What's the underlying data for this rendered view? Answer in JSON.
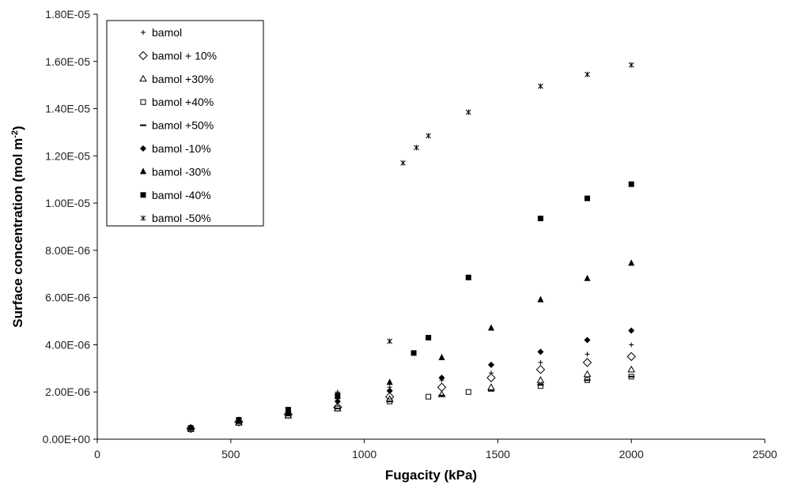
{
  "chart_data": {
    "type": "scatter",
    "title": "",
    "xlabel": "Fugacity (kPa)",
    "ylabel_main": "Surface concentration (mol m",
    "ylabel_sup": "-2",
    "ylabel_close": ")",
    "xlim": [
      0,
      2500
    ],
    "ylim": [
      0,
      1.8e-05
    ],
    "x_ticks": [
      0,
      500,
      1000,
      1500,
      2000,
      2500
    ],
    "x_tick_labels": [
      "0",
      "500",
      "1000",
      "1500",
      "2000",
      "2500"
    ],
    "y_ticks": [
      0,
      2e-06,
      4e-06,
      6e-06,
      8e-06,
      1e-05,
      1.2e-05,
      1.4e-05,
      1.6e-05,
      1.8e-05
    ],
    "y_tick_labels": [
      "0.00E+00",
      "2.00E-06",
      "4.00E-06",
      "6.00E-06",
      "8.00E-06",
      "1.00E-05",
      "1.20E-05",
      "1.40E-05",
      "1.60E-05",
      "1.80E-05"
    ],
    "grid": false,
    "legend_position": "top-left",
    "series": [
      {
        "name": "bamol",
        "marker": "plus",
        "x": [
          350,
          530,
          715,
          900,
          1095,
          1290,
          1475,
          1660,
          1835,
          2000
        ],
        "y": [
          5e-07,
          7.7e-07,
          1.2e-06,
          2e-06,
          2.2e-06,
          2.5e-06,
          2.8e-06,
          3.25e-06,
          3.6e-06,
          4e-06
        ]
      },
      {
        "name": "bamol + 10%",
        "marker": "diamond-open",
        "x": [
          350,
          530,
          715,
          900,
          1095,
          1290,
          1475,
          1660,
          1835,
          2000
        ],
        "y": [
          4.5e-07,
          7.3e-07,
          1.05e-06,
          1.35e-06,
          1.8e-06,
          2.2e-06,
          2.6e-06,
          2.95e-06,
          3.25e-06,
          3.5e-06
        ]
      },
      {
        "name": "bamol +30%",
        "marker": "triangle-open",
        "x": [
          350,
          530,
          715,
          900,
          1095,
          1290,
          1475,
          1660,
          1835,
          2000
        ],
        "y": [
          4.4e-07,
          7e-07,
          1e-06,
          1.3e-06,
          1.7e-06,
          1.9e-06,
          2.2e-06,
          2.5e-06,
          2.75e-06,
          2.95e-06
        ]
      },
      {
        "name": "bamol +40%",
        "marker": "square-open",
        "x": [
          350,
          530,
          715,
          900,
          1095,
          1240,
          1390,
          1660,
          1835,
          2000
        ],
        "y": [
          4.2e-07,
          7e-07,
          1e-06,
          1.3e-06,
          1.6e-06,
          1.8e-06,
          2e-06,
          2.25e-06,
          2.5e-06,
          2.65e-06
        ]
      },
      {
        "name": "bamol +50%",
        "marker": "dash",
        "x": [
          350,
          530,
          715,
          900,
          1095,
          1290,
          1475,
          1660,
          1835,
          2000
        ],
        "y": [
          4e-07,
          6.8e-07,
          1e-06,
          1.3e-06,
          1.6e-06,
          1.85e-06,
          2.05e-06,
          2.3e-06,
          2.5e-06,
          2.65e-06
        ]
      },
      {
        "name": "bamol -10%",
        "marker": "diamond-filled",
        "x": [
          350,
          530,
          715,
          900,
          1095,
          1290,
          1475,
          1660,
          1835,
          2000
        ],
        "y": [
          4.6e-07,
          7.7e-07,
          1.1e-06,
          1.6e-06,
          2.05e-06,
          2.6e-06,
          3.15e-06,
          3.7e-06,
          4.2e-06,
          4.6e-06
        ]
      },
      {
        "name": "bamol -30%",
        "marker": "triangle-filled",
        "x": [
          350,
          530,
          715,
          900,
          1095,
          1290,
          1475,
          1660,
          1835,
          2000
        ],
        "y": [
          4.8e-07,
          8e-07,
          1.2e-06,
          1.8e-06,
          2.4e-06,
          3.45e-06,
          4.7e-06,
          5.9e-06,
          6.8e-06,
          7.45e-06
        ]
      },
      {
        "name": "bamol -40%",
        "marker": "square-filled",
        "x": [
          350,
          530,
          715,
          900,
          1185,
          1240,
          1390,
          1660,
          1835,
          2000
        ],
        "y": [
          4.8e-07,
          8.2e-07,
          1.25e-06,
          1.85e-06,
          3.65e-06,
          4.3e-06,
          6.85e-06,
          9.35e-06,
          1.02e-05,
          1.08e-05
        ]
      },
      {
        "name": "bamol -50%",
        "marker": "asterisk",
        "x": [
          1095,
          1145,
          1195,
          1240,
          1390,
          1660,
          1835,
          2000
        ],
        "y": [
          4.15e-06,
          1.17e-05,
          1.235e-05,
          1.285e-05,
          1.385e-05,
          1.495e-05,
          1.545e-05,
          1.585e-05
        ]
      }
    ]
  }
}
